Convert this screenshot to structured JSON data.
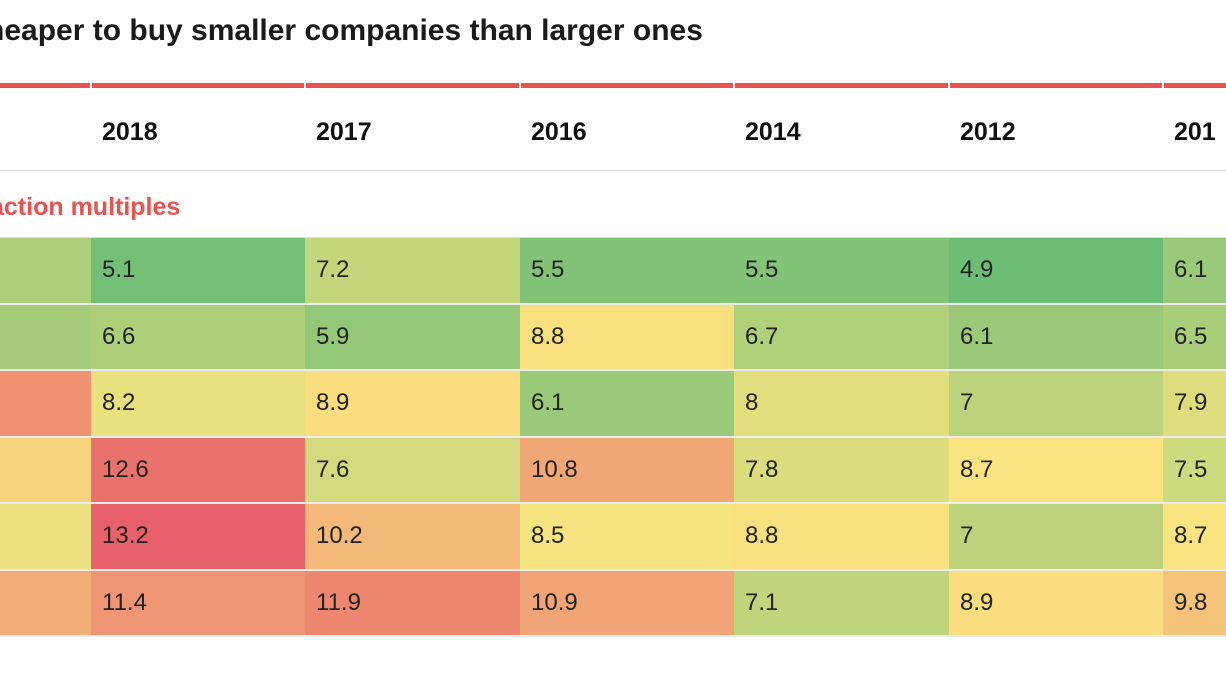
{
  "title": "heaper to buy smaller companies than larger ones",
  "section_label": "action multiples",
  "colors": {
    "accent": "#e8524f",
    "scale_low": "#6cbd75",
    "scale_mid": "#fae580",
    "scale_high": "#e8616a"
  },
  "chart_data": {
    "type": "heatmap",
    "title": "heaper to buy smaller companies than larger ones",
    "columns": [
      "",
      "2018",
      "2017",
      "2016",
      "2014",
      "2012",
      "201"
    ],
    "rows": [
      {
        "values": [
          6.6,
          5.1,
          7.2,
          5.5,
          5.5,
          4.9,
          6.1
        ],
        "labels": [
          "",
          "5.1",
          "7.2",
          "5.5",
          "5.5",
          "4.9",
          "6.1"
        ]
      },
      {
        "values": [
          6.4,
          6.6,
          5.9,
          8.8,
          6.7,
          6.1,
          6.5
        ],
        "labels": [
          "",
          "6.6",
          "5.9",
          "8.8",
          "6.7",
          "6.1",
          "6.5"
        ]
      },
      {
        "values": [
          11.5,
          8.2,
          8.9,
          6.1,
          8.0,
          7.0,
          7.9
        ],
        "labels": [
          "",
          "8.2",
          "8.9",
          "6.1",
          "8",
          "7",
          "7.9"
        ]
      },
      {
        "values": [
          9.2,
          12.6,
          7.6,
          10.8,
          7.8,
          8.7,
          7.5
        ],
        "labels": [
          "",
          "12.6",
          "7.6",
          "10.8",
          "7.8",
          "8.7",
          "7.5"
        ]
      },
      {
        "values": [
          8.3,
          13.2,
          10.2,
          8.5,
          8.8,
          7.0,
          8.7
        ],
        "labels": [
          "",
          "13.2",
          "10.2",
          "8.5",
          "8.8",
          "7",
          "8.7"
        ]
      },
      {
        "values": [
          10.6,
          11.4,
          11.9,
          10.9,
          7.1,
          8.9,
          9.8
        ],
        "labels": [
          "",
          "11.4",
          "11.9",
          "10.9",
          "7.1",
          "8.9",
          "9.8"
        ]
      }
    ],
    "value_range": [
      4.9,
      13.2
    ]
  }
}
